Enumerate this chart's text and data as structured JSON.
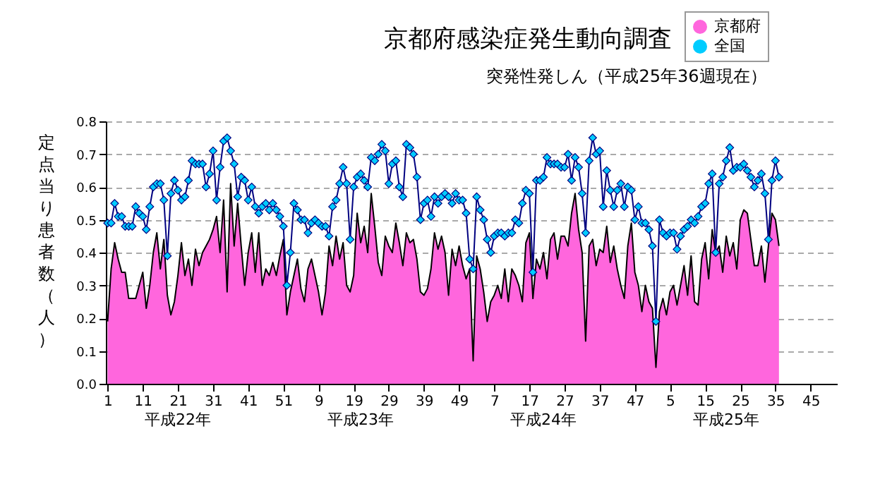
{
  "chart_data": {
    "type": "line",
    "title": "京都府感染症発生動向調査",
    "subtitle": "突発性発しん（平成25年36週現在）",
    "ylabel": "定点当り患者数（人）",
    "annotations": [
      "平成22年",
      "平成23年",
      "平成24年",
      "平成25年"
    ],
    "categories": [
      "1",
      null,
      null,
      null,
      null,
      null,
      null,
      null,
      null,
      null,
      "11",
      null,
      null,
      null,
      null,
      null,
      null,
      null,
      null,
      null,
      "21",
      null,
      null,
      null,
      null,
      null,
      null,
      null,
      null,
      null,
      "31",
      null,
      null,
      null,
      null,
      null,
      null,
      null,
      null,
      null,
      "41",
      null,
      null,
      null,
      null,
      null,
      null,
      null,
      null,
      null,
      "51",
      null,
      null,
      null,
      null,
      null,
      null,
      null,
      null,
      null,
      "9",
      null,
      null,
      null,
      null,
      null,
      null,
      null,
      null,
      null,
      "19",
      null,
      null,
      null,
      null,
      null,
      null,
      null,
      null,
      null,
      "29",
      null,
      null,
      null,
      null,
      null,
      null,
      null,
      null,
      null,
      "39",
      null,
      null,
      null,
      null,
      null,
      null,
      null,
      null,
      null,
      "49",
      null,
      null,
      null,
      null,
      null,
      null,
      null,
      null,
      null,
      "7",
      null,
      null,
      null,
      null,
      null,
      null,
      null,
      null,
      null,
      "17",
      null,
      null,
      null,
      null,
      null,
      null,
      null,
      null,
      null,
      "27",
      null,
      null,
      null,
      null,
      null,
      null,
      null,
      null,
      null,
      "37",
      null,
      null,
      null,
      null,
      null,
      null,
      null,
      null,
      null,
      "47",
      null,
      null,
      null,
      null,
      null,
      null,
      null,
      null,
      null,
      "5",
      null,
      null,
      null,
      null,
      null,
      null,
      null,
      null,
      null,
      "15",
      null,
      null,
      null,
      null,
      null,
      null,
      null,
      null,
      null,
      "25",
      null,
      null,
      null,
      null,
      null,
      null,
      null,
      null,
      null,
      "35",
      null,
      null,
      null,
      null,
      null,
      null,
      null,
      null,
      null,
      "45",
      null,
      null,
      null,
      null,
      null,
      null,
      null
    ],
    "series": [
      {
        "name": "京都府",
        "type": "area",
        "color": "#ff66dd",
        "values": [
          0.19,
          0.35,
          0.43,
          0.38,
          0.34,
          0.34,
          0.26,
          0.26,
          0.26,
          0.3,
          0.34,
          0.23,
          0.3,
          0.4,
          0.46,
          0.35,
          0.44,
          0.27,
          0.21,
          0.25,
          0.33,
          0.43,
          0.33,
          0.38,
          0.3,
          0.41,
          0.36,
          0.4,
          0.42,
          0.44,
          0.47,
          0.51,
          0.4,
          0.56,
          0.28,
          0.61,
          0.42,
          0.55,
          0.42,
          0.3,
          0.4,
          0.46,
          0.34,
          0.46,
          0.3,
          0.35,
          0.33,
          0.37,
          0.33,
          0.39,
          0.44,
          0.21,
          0.28,
          0.33,
          0.38,
          0.29,
          0.25,
          0.35,
          0.38,
          0.33,
          0.28,
          0.21,
          0.28,
          0.42,
          0.36,
          0.45,
          0.38,
          0.43,
          0.3,
          0.28,
          0.33,
          0.52,
          0.43,
          0.48,
          0.4,
          0.58,
          0.48,
          0.37,
          0.33,
          0.45,
          0.42,
          0.4,
          0.49,
          0.43,
          0.36,
          0.46,
          0.43,
          0.44,
          0.38,
          0.28,
          0.27,
          0.29,
          0.35,
          0.46,
          0.41,
          0.45,
          0.4,
          0.27,
          0.41,
          0.36,
          0.42,
          0.36,
          0.32,
          0.35,
          0.07,
          0.39,
          0.35,
          0.28,
          0.19,
          0.25,
          0.27,
          0.3,
          0.26,
          0.35,
          0.25,
          0.35,
          0.33,
          0.3,
          0.25,
          0.43,
          0.46,
          0.26,
          0.38,
          0.35,
          0.4,
          0.32,
          0.44,
          0.46,
          0.38,
          0.45,
          0.45,
          0.42,
          0.52,
          0.58,
          0.47,
          0.4,
          0.13,
          0.42,
          0.44,
          0.36,
          0.41,
          0.4,
          0.48,
          0.37,
          0.42,
          0.35,
          0.3,
          0.26,
          0.42,
          0.49,
          0.34,
          0.3,
          0.22,
          0.3,
          0.25,
          0.23,
          0.05,
          0.22,
          0.26,
          0.21,
          0.28,
          0.3,
          0.24,
          0.3,
          0.36,
          0.27,
          0.39,
          0.25,
          0.24,
          0.38,
          0.43,
          0.32,
          0.47,
          0.4,
          0.42,
          0.34,
          0.45,
          0.39,
          0.43,
          0.35,
          0.5,
          0.53,
          0.52,
          0.44,
          0.36,
          0.36,
          0.42,
          0.31,
          0.42,
          0.52,
          0.5,
          0.42,
          null,
          null,
          null,
          null,
          null,
          null,
          null,
          null,
          null,
          null,
          null,
          null,
          null,
          null,
          null,
          null
        ]
      },
      {
        "name": "全国",
        "type": "line",
        "color": "#00ccff",
        "marker": "diamond",
        "values": [
          0.49,
          0.49,
          0.55,
          0.51,
          0.51,
          0.48,
          0.48,
          0.48,
          0.54,
          0.52,
          0.51,
          0.47,
          0.54,
          0.6,
          0.61,
          0.61,
          0.56,
          0.39,
          0.58,
          0.62,
          0.59,
          0.56,
          0.57,
          0.62,
          0.68,
          0.67,
          0.67,
          0.67,
          0.6,
          0.64,
          0.71,
          0.56,
          0.66,
          0.74,
          0.75,
          0.71,
          0.67,
          0.57,
          0.63,
          0.62,
          0.56,
          0.6,
          0.54,
          0.52,
          0.54,
          0.55,
          0.53,
          0.55,
          0.53,
          0.51,
          0.48,
          0.3,
          0.4,
          0.55,
          0.53,
          0.5,
          0.5,
          0.46,
          0.49,
          0.5,
          0.49,
          0.48,
          0.48,
          0.45,
          0.54,
          0.56,
          0.61,
          0.66,
          0.61,
          0.44,
          0.6,
          0.63,
          0.64,
          0.62,
          0.6,
          0.69,
          0.68,
          0.7,
          0.73,
          0.71,
          0.61,
          0.67,
          0.68,
          0.6,
          0.57,
          0.73,
          0.72,
          0.7,
          0.63,
          0.5,
          0.55,
          0.56,
          0.51,
          0.57,
          0.55,
          0.57,
          0.58,
          0.57,
          0.55,
          0.58,
          0.56,
          0.56,
          0.52,
          0.38,
          0.35,
          0.57,
          0.53,
          0.5,
          0.44,
          0.4,
          0.45,
          0.46,
          0.46,
          0.45,
          0.46,
          0.46,
          0.5,
          0.49,
          0.55,
          0.59,
          0.58,
          0.34,
          0.62,
          0.62,
          0.63,
          0.69,
          0.67,
          0.67,
          0.67,
          0.66,
          0.66,
          0.7,
          0.62,
          0.69,
          0.66,
          0.58,
          0.46,
          0.68,
          0.75,
          0.7,
          0.71,
          0.54,
          0.65,
          0.59,
          0.54,
          0.59,
          0.61,
          0.54,
          0.6,
          0.59,
          0.5,
          0.54,
          0.49,
          0.49,
          0.47,
          0.42,
          0.19,
          0.5,
          0.46,
          0.45,
          0.46,
          0.46,
          0.41,
          0.45,
          0.47,
          0.48,
          0.5,
          0.49,
          0.51,
          0.54,
          0.55,
          0.61,
          0.64,
          0.4,
          0.61,
          0.63,
          0.68,
          0.72,
          0.65,
          0.66,
          0.66,
          0.67,
          0.65,
          0.63,
          0.6,
          0.62,
          0.64,
          0.58,
          0.44,
          0.62,
          0.68,
          0.63,
          null,
          null,
          null,
          null,
          null,
          null,
          null,
          null,
          null,
          null,
          null,
          null,
          null,
          null,
          null,
          null
        ]
      }
    ],
    "ylim": [
      0,
      0.8
    ],
    "yticks": [
      {
        "value": 0,
        "label": "0.0"
      },
      0.1,
      0.2,
      0.3,
      0.4,
      0.5,
      0.6,
      0.7,
      0.8
    ],
    "grid": "y",
    "legend": "top right"
  }
}
